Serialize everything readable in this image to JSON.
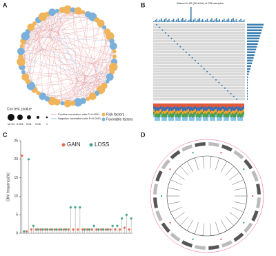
{
  "panels": {
    "a": "A",
    "b": "B",
    "c": "C",
    "d": "D"
  },
  "network": {
    "legend_title": "Cox test, pvalue",
    "size_labels": [
      "1e-04",
      "0.001",
      "0.01",
      "0.05",
      "1"
    ],
    "positive": "Positive correlation with P<0.0001",
    "negative": "Negative correlation with P<0.0001",
    "risk": "Risk factors",
    "favorable": "Favorable factors"
  },
  "oncoplot": {
    "title": "Altered in 86 (36.44%) of 236 samples"
  },
  "chart_data": [
    {
      "type": "lollipop",
      "y_label": "CNV frequency(%)",
      "categories": [
        null,
        null,
        null,
        null,
        null,
        null,
        null,
        null,
        null,
        null,
        null,
        null,
        null,
        null,
        null,
        null,
        null,
        null,
        null,
        null,
        null,
        null,
        null,
        null
      ],
      "series": [
        {
          "name": "GAIN",
          "color": "#e8694f",
          "values": [
            21,
            0.5,
            1,
            1,
            1,
            1,
            1,
            1,
            1,
            1,
            1,
            1,
            1,
            1,
            1,
            1,
            1,
            1,
            1,
            1,
            1,
            1,
            1.5,
            1
          ]
        },
        {
          "name": "LOSS",
          "color": "#3aa68a",
          "values": [
            0.5,
            20,
            2,
            1,
            1,
            1,
            1,
            1,
            1,
            1,
            7,
            7,
            7,
            1,
            1,
            2,
            1,
            1,
            1,
            2,
            2,
            4,
            5,
            4
          ]
        }
      ],
      "ylim": [
        0,
        25
      ],
      "yticks": [
        0,
        5,
        10,
        15,
        20,
        25
      ],
      "grid": false
    }
  ]
}
